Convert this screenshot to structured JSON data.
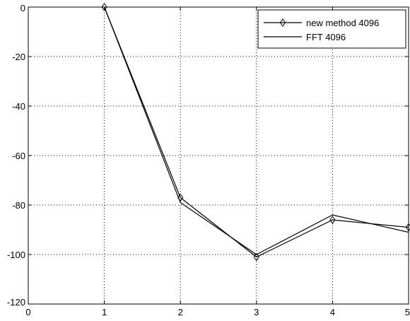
{
  "chart_data": {
    "type": "line",
    "title": "",
    "xlabel": "",
    "ylabel": "",
    "xlim": [
      0,
      5
    ],
    "ylim": [
      -120,
      0
    ],
    "xticks": [
      "0",
      "1",
      "2",
      "3",
      "4",
      "5"
    ],
    "yticks": [
      "0",
      "-20",
      "-40",
      "-60",
      "-80",
      "-100",
      "-120"
    ],
    "grid": true,
    "legend_position": "top-right",
    "series": [
      {
        "name": "new method 4096",
        "marker": "diamond",
        "color": "#000000",
        "x": [
          1,
          2,
          3,
          4,
          5
        ],
        "y": [
          0,
          -77,
          -101,
          -86,
          -89
        ]
      },
      {
        "name": "FFT 4096",
        "marker": "none",
        "color": "#000000",
        "x": [
          1,
          2,
          3,
          4,
          5
        ],
        "y": [
          0,
          -79,
          -100,
          -84,
          -91
        ]
      }
    ]
  }
}
